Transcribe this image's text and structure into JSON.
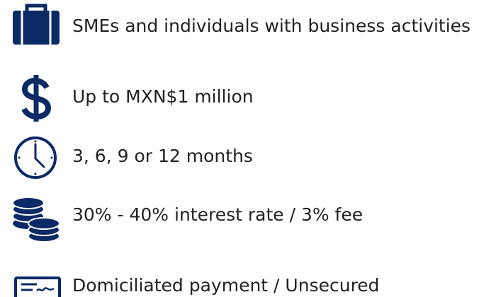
{
  "items": [
    {
      "text": "SMEs and individuals with business activities"
    },
    {
      "text": "Up to MXN$1 million"
    },
    {
      "text": "3, 6, 9 or 12 months"
    },
    {
      "text": "30% - 40% interest rate / 3% fee"
    },
    {
      "text": "Domiciliated payment / Unsecured"
    }
  ]
}
